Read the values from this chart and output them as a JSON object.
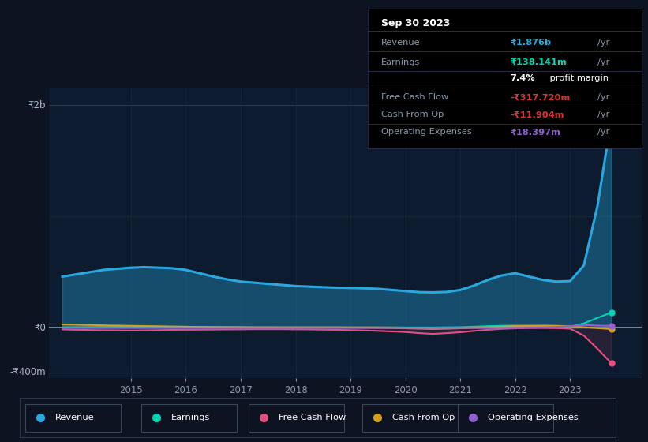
{
  "bg_color": "#0d1321",
  "plot_bg_color": "#0d1b2e",
  "title_box": {
    "date": "Sep 30 2023",
    "revenue_label": "Revenue",
    "revenue_value": "₹1.876b",
    "earnings_label": "Earnings",
    "earnings_value": "₹138.141m",
    "profit_margin": "7.4%",
    "profit_margin_text": " profit margin",
    "fcf_label": "Free Cash Flow",
    "fcf_value": "-₹317.720m",
    "cfo_label": "Cash From Op",
    "cfo_value": "-₹11.904m",
    "opex_label": "Operating Expenses",
    "opex_value": "₹18.397m"
  },
  "years": [
    2013.75,
    2014.0,
    2014.25,
    2014.5,
    2014.75,
    2015.0,
    2015.25,
    2015.5,
    2015.75,
    2016.0,
    2016.25,
    2016.5,
    2016.75,
    2017.0,
    2017.25,
    2017.5,
    2017.75,
    2018.0,
    2018.25,
    2018.5,
    2018.75,
    2019.0,
    2019.25,
    2019.5,
    2019.75,
    2020.0,
    2020.25,
    2020.5,
    2020.75,
    2021.0,
    2021.25,
    2021.5,
    2021.75,
    2022.0,
    2022.25,
    2022.5,
    2022.75,
    2023.0,
    2023.25,
    2023.5,
    2023.75
  ],
  "revenue": [
    460,
    480,
    500,
    520,
    530,
    540,
    545,
    540,
    535,
    520,
    490,
    460,
    435,
    415,
    405,
    395,
    385,
    375,
    370,
    365,
    360,
    358,
    355,
    350,
    340,
    330,
    320,
    318,
    322,
    340,
    380,
    430,
    470,
    490,
    460,
    430,
    415,
    420,
    560,
    1100,
    1876
  ],
  "earnings": [
    5,
    6,
    7,
    8,
    9,
    10,
    10,
    10,
    9,
    9,
    8,
    8,
    7,
    7,
    6,
    6,
    6,
    6,
    6,
    6,
    6,
    5,
    5,
    5,
    4,
    3,
    3,
    3,
    4,
    6,
    10,
    15,
    18,
    20,
    18,
    16,
    13,
    10,
    40,
    90,
    138
  ],
  "free_cash_flow": [
    -15,
    -18,
    -20,
    -22,
    -23,
    -24,
    -23,
    -21,
    -19,
    -18,
    -17,
    -16,
    -15,
    -14,
    -13,
    -13,
    -13,
    -14,
    -15,
    -17,
    -19,
    -21,
    -24,
    -28,
    -33,
    -38,
    -48,
    -55,
    -48,
    -40,
    -28,
    -18,
    -10,
    -5,
    -2,
    -1,
    -3,
    -8,
    -70,
    -190,
    -318
  ],
  "cash_from_op": [
    30,
    28,
    25,
    22,
    20,
    18,
    16,
    14,
    12,
    10,
    8,
    6,
    5,
    4,
    3,
    3,
    2,
    2,
    2,
    2,
    2,
    2,
    2,
    0,
    -2,
    -5,
    -8,
    -10,
    -8,
    -5,
    0,
    5,
    10,
    15,
    18,
    20,
    18,
    14,
    5,
    -3,
    -12
  ],
  "operating_expenses": [
    -2,
    -2,
    -2,
    -2,
    -2,
    -2,
    -2,
    -2,
    -2,
    -2,
    -2,
    -2,
    -2,
    -2,
    -2,
    -2,
    -2,
    -2,
    -2,
    -2,
    -2,
    -2,
    -2,
    -2,
    -2,
    -2,
    -2,
    -2,
    -2,
    -2,
    -2,
    -2,
    -2,
    -2,
    0,
    3,
    8,
    15,
    25,
    20,
    18
  ],
  "revenue_color": "#29a8e0",
  "earnings_color": "#00d4b4",
  "free_cash_flow_color": "#e05080",
  "cash_from_op_color": "#d4a020",
  "operating_expenses_color": "#9060d0",
  "ylabel_2b": "₹2b",
  "ylabel_0": "₹0",
  "ylabel_400m": "-₹400m",
  "xtick_labels": [
    "2015",
    "2016",
    "2017",
    "2018",
    "2019",
    "2020",
    "2021",
    "2022",
    "2023"
  ],
  "xtick_positions": [
    2015,
    2016,
    2017,
    2018,
    2019,
    2020,
    2021,
    2022,
    2023
  ],
  "ylim": [
    -450,
    2150
  ],
  "xlim": [
    2013.5,
    2024.3
  ],
  "legend_labels": [
    "Revenue",
    "Earnings",
    "Free Cash Flow",
    "Cash From Op",
    "Operating Expenses"
  ],
  "legend_colors": [
    "#29a8e0",
    "#00d4b4",
    "#e05080",
    "#d4a020",
    "#9060d0"
  ]
}
